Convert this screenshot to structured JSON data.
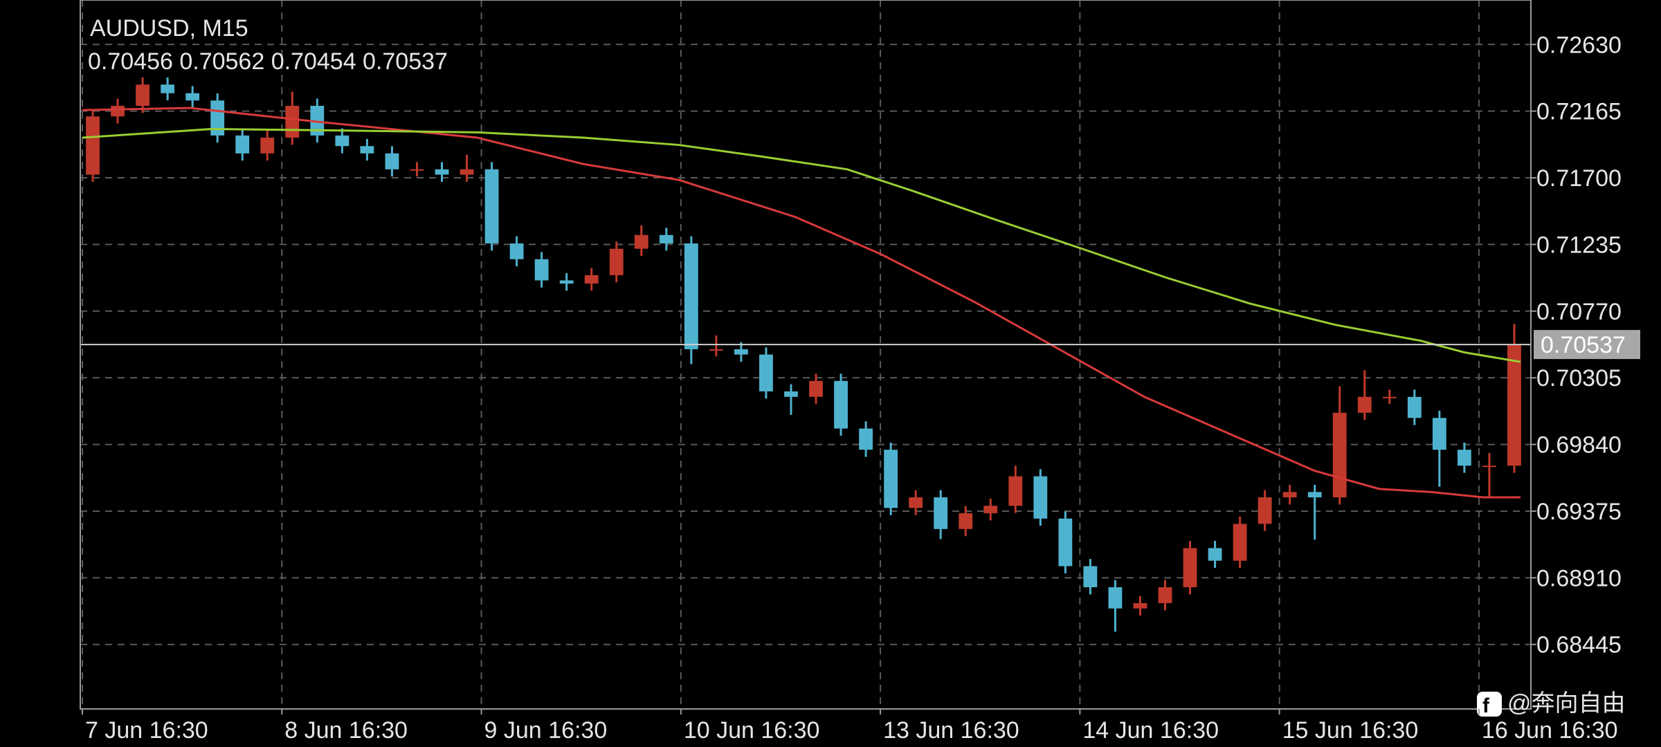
{
  "chart_data": {
    "type": "candlestick",
    "title": "AUDUSD, M15",
    "subtitle": "0.70456 0.70562 0.70454 0.70537",
    "x": [
      6,
      18,
      30,
      42,
      54,
      66,
      78,
      90,
      102,
      114,
      126,
      138,
      150,
      162,
      174,
      186,
      198,
      210,
      222,
      234,
      246,
      258,
      270,
      282,
      294,
      306,
      318,
      330,
      342,
      354,
      366,
      378,
      390,
      402,
      414,
      426,
      438,
      450,
      462,
      474,
      486,
      498,
      510,
      522,
      534,
      546,
      558,
      570,
      582,
      594,
      606,
      618,
      630,
      642,
      654,
      666,
      678,
      690
    ],
    "open": [
      0.71722,
      0.72128,
      0.72202,
      0.7235,
      0.7229,
      0.72239,
      0.71995,
      0.7187,
      0.7198,
      0.72202,
      0.71995,
      0.71921,
      0.7187,
      0.71759,
      0.71759,
      0.71722,
      0.71759,
      0.71242,
      0.71132,
      0.70984,
      0.70962,
      0.71021,
      0.71205,
      0.71301,
      0.71242,
      0.70504,
      0.70504,
      0.70467,
      0.7021,
      0.70172,
      0.70283,
      0.69951,
      0.69803,
      0.69397,
      0.69471,
      0.6925,
      0.6936,
      0.69412,
      0.69618,
      0.69323,
      0.68991,
      0.68844,
      0.68696,
      0.68733,
      0.68844,
      0.69117,
      0.69029,
      0.69286,
      0.69471,
      0.69508,
      0.69471,
      0.70061,
      0.70172,
      0.70172,
      0.70025,
      0.69803,
      0.69692,
      0.69692
    ],
    "high": [
      0.72178,
      0.72252,
      0.724,
      0.724,
      0.7234,
      0.72289,
      0.72045,
      0.7203,
      0.723,
      0.72252,
      0.72045,
      0.71971,
      0.7192,
      0.71809,
      0.71809,
      0.7186,
      0.71809,
      0.71292,
      0.71182,
      0.71034,
      0.71071,
      0.71255,
      0.71368,
      0.71351,
      0.71292,
      0.706,
      0.70554,
      0.70517,
      0.7026,
      0.70333,
      0.70333,
      0.70001,
      0.69853,
      0.69521,
      0.69521,
      0.6941,
      0.69462,
      0.69692,
      0.69668,
      0.69373,
      0.69041,
      0.68894,
      0.68783,
      0.68894,
      0.69167,
      0.69167,
      0.69336,
      0.69521,
      0.69558,
      0.69558,
      0.70246,
      0.70357,
      0.70222,
      0.70222,
      0.70075,
      0.69853,
      0.6978,
      0.70681
    ],
    "low": [
      0.71672,
      0.72078,
      0.72152,
      0.7224,
      0.72189,
      0.71945,
      0.7182,
      0.7182,
      0.7193,
      0.71945,
      0.71871,
      0.7182,
      0.71709,
      0.71709,
      0.71672,
      0.71672,
      0.71192,
      0.71082,
      0.70934,
      0.70912,
      0.70912,
      0.70971,
      0.71155,
      0.71192,
      0.704,
      0.70454,
      0.70417,
      0.7016,
      0.70047,
      0.70122,
      0.69901,
      0.69753,
      0.69347,
      0.69347,
      0.6918,
      0.692,
      0.6931,
      0.69362,
      0.69273,
      0.68941,
      0.68794,
      0.68534,
      0.68646,
      0.68683,
      0.68794,
      0.68979,
      0.68979,
      0.69236,
      0.69421,
      0.69176,
      0.69421,
      0.70011,
      0.70122,
      0.69975,
      0.69545,
      0.69642,
      0.6947,
      0.69642
    ],
    "close": [
      0.72128,
      0.72202,
      0.7235,
      0.7229,
      0.72239,
      0.71995,
      0.7187,
      0.7198,
      0.72202,
      0.71995,
      0.71921,
      0.7187,
      0.71759,
      0.71759,
      0.71722,
      0.71759,
      0.71242,
      0.71132,
      0.70984,
      0.70962,
      0.71021,
      0.71205,
      0.71301,
      0.71242,
      0.70504,
      0.70504,
      0.70467,
      0.7021,
      0.70172,
      0.70283,
      0.69951,
      0.69803,
      0.69397,
      0.69471,
      0.6925,
      0.6936,
      0.69412,
      0.69618,
      0.69323,
      0.68991,
      0.68844,
      0.68696,
      0.68733,
      0.68844,
      0.69117,
      0.69029,
      0.69286,
      0.69471,
      0.69508,
      0.69471,
      0.70061,
      0.70172,
      0.70172,
      0.70025,
      0.69803,
      0.69692,
      0.69692,
      0.70537
    ],
    "up_color": "#c0392b",
    "down_color": "#4fb3cf",
    "series": [
      {
        "color": "#d83a3a",
        "x": [
          1,
          53,
          114,
          191,
          242,
          288,
          344,
          385,
          430,
          471,
          512,
          553,
          594,
          625,
          650,
          675,
          693
        ],
        "values": [
          0.72172,
          0.72187,
          0.72091,
          0.7198,
          0.71796,
          0.71685,
          0.71427,
          0.71169,
          0.70836,
          0.70504,
          0.70172,
          0.69914,
          0.69656,
          0.6953,
          0.69508,
          0.69471,
          0.69471
        ]
      },
      {
        "color": "#9acd32",
        "x": [
          1,
          63,
          114,
          191,
          242,
          288,
          328,
          369,
          400,
          441,
          482,
          522,
          563,
          604,
          645,
          666,
          693
        ],
        "values": [
          0.7198,
          0.7204,
          0.72032,
          0.72017,
          0.7198,
          0.71929,
          0.71848,
          0.71759,
          0.71611,
          0.71405,
          0.71205,
          0.71006,
          0.70822,
          0.70674,
          0.70563,
          0.70482,
          0.70416
        ]
      }
    ],
    "current_price": 0.70537,
    "xlim": [
      0,
      698
    ],
    "ylim": [
      0.67995,
      0.7294
    ],
    "xticks": [
      {
        "value": 1,
        "label": "7 Jun 16:30"
      },
      {
        "value": 97,
        "label": "8 Jun 16:30"
      },
      {
        "value": 193,
        "label": "9 Jun 16:30"
      },
      {
        "value": 289,
        "label": "10 Jun 16:30"
      },
      {
        "value": 385,
        "label": "13 Jun 16:30"
      },
      {
        "value": 481,
        "label": "14 Jun 16:30"
      },
      {
        "value": 577,
        "label": "15 Jun 16:30"
      },
      {
        "value": 673,
        "label": "16 Jun 16:30"
      }
    ],
    "yticks": [
      {
        "value": 0.7263,
        "label": "0.72630"
      },
      0.72165,
      {
        "value": 0.717,
        "label": "0.71700"
      },
      0.71235,
      {
        "value": 0.7077,
        "label": "0.70770"
      },
      0.70305,
      {
        "value": 0.6984,
        "label": "0.69840"
      },
      0.69375,
      {
        "value": 0.6891,
        "label": "0.68910"
      },
      0.68445
    ],
    "grid": true
  },
  "watermark": "@奔向自由"
}
